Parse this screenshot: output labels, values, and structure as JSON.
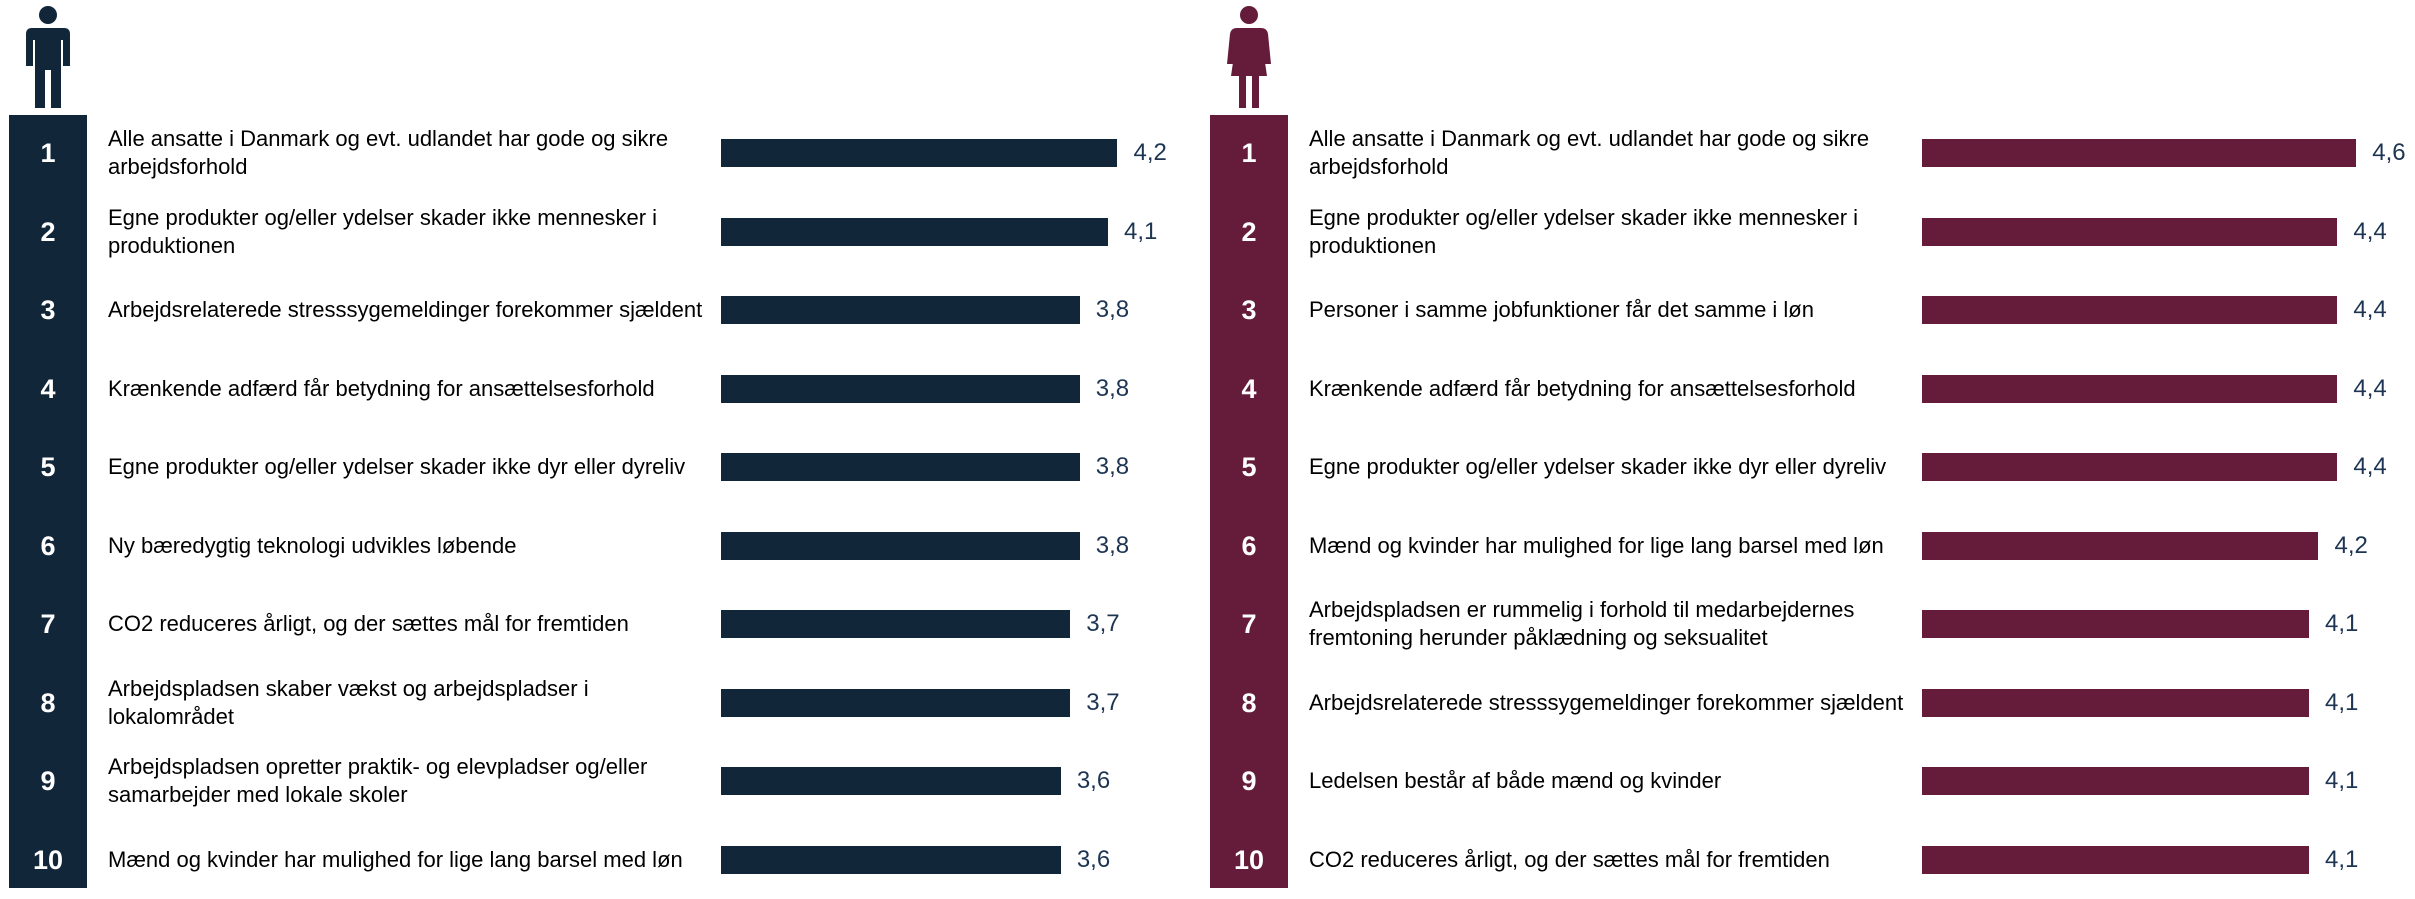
{
  "chart_data": [
    {
      "type": "bar",
      "orientation": "horizontal",
      "color": "#12263a",
      "ranks": [
        1,
        2,
        3,
        4,
        5,
        6,
        7,
        8,
        9,
        10
      ],
      "categories": [
        "Alle ansatte i Danmark og evt. udlandet har gode og sikre arbejdsforhold",
        "Egne produkter og/eller ydelser skader ikke mennesker i produktionen",
        "Arbejdsrelaterede stresssygemeldinger forekommer sjældent",
        "Krænkende adfærd får betydning for ansættelsesforhold",
        "Egne produkter og/eller ydelser skader ikke dyr eller dyreliv",
        "Ny bæredygtig teknologi udvikles løbende",
        "CO2 reduceres årligt, og der sættes mål for fremtiden",
        "Arbejdspladsen skaber vækst og arbejdspladser i lokalområdet",
        "Arbejdspladsen opretter praktik- og elevpladser og/eller samarbejder med lokale skoler",
        "Mænd og kvinder har mulighed for lige lang barsel med løn"
      ],
      "values": [
        4.2,
        4.1,
        3.8,
        3.8,
        3.8,
        3.8,
        3.7,
        3.7,
        3.6,
        3.6
      ],
      "value_labels": [
        "4,2",
        "4,1",
        "3,8",
        "3,8",
        "3,8",
        "3,8",
        "3,7",
        "3,7",
        "3,6",
        "3,6"
      ],
      "xlim": [
        0,
        5
      ]
    },
    {
      "type": "bar",
      "orientation": "horizontal",
      "color": "#641c3a",
      "ranks": [
        1,
        2,
        3,
        4,
        5,
        6,
        7,
        8,
        9,
        10
      ],
      "categories": [
        "Alle ansatte i Danmark og evt. udlandet har gode og sikre arbejdsforhold",
        "Egne produkter og/eller ydelser skader ikke mennesker i produktionen",
        "Personer i samme jobfunktioner får det samme i løn",
        "Krænkende adfærd får betydning for ansættelsesforhold",
        "Egne produkter og/eller ydelser skader ikke dyr eller dyreliv",
        "Mænd og kvinder har mulighed for lige lang barsel med løn",
        "Arbejdspladsen er rummelig i forhold til medarbejdernes fremtoning herunder påklædning og seksualitet",
        "Arbejdsrelaterede stresssygemeldinger forekommer sjældent",
        "Ledelsen består af både mænd og kvinder",
        "CO2 reduceres årligt, og der sættes mål for fremtiden"
      ],
      "values": [
        4.6,
        4.4,
        4.4,
        4.4,
        4.4,
        4.2,
        4.1,
        4.1,
        4.1,
        4.1
      ],
      "value_labels": [
        "4,6",
        "4,4",
        "4,4",
        "4,4",
        "4,4",
        "4,2",
        "4,1",
        "4,1",
        "4,1",
        "4,1"
      ],
      "xlim": [
        0,
        5
      ]
    }
  ]
}
